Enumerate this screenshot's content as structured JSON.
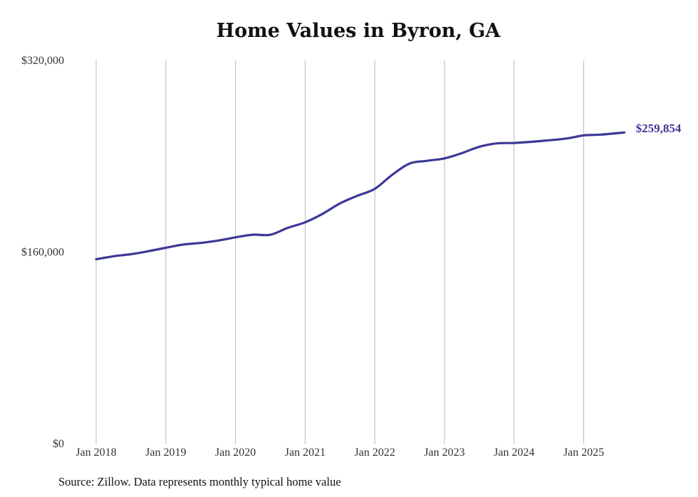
{
  "page": {
    "title": "Home Values in Byron, GA",
    "source": "Source: Zillow. Data represents monthly typical home value"
  },
  "colors": {
    "line": "#3d3897",
    "grid": "#b8b8b8",
    "text": "#333333"
  },
  "chart_data": {
    "type": "line",
    "title": "Home Values in Byron, GA",
    "xlabel": "",
    "ylabel": "",
    "x_ticks": [
      "Jan 2018",
      "Jan 2019",
      "Jan 2020",
      "Jan 2021",
      "Jan 2022",
      "Jan 2023",
      "Jan 2024",
      "Jan 2025"
    ],
    "y_ticks": [
      "$0",
      "$160,000",
      "$320,000"
    ],
    "ylim": [
      0,
      320000
    ],
    "xlim": [
      "2018-01",
      "2025-08"
    ],
    "grid": "vertical lines at x ticks",
    "end_label": "$259,854",
    "series": [
      {
        "x": [
          "2018-01",
          "2018-04",
          "2018-07",
          "2018-10",
          "2019-01",
          "2019-04",
          "2019-07",
          "2019-10",
          "2020-01",
          "2020-04",
          "2020-07",
          "2020-10",
          "2021-01",
          "2021-04",
          "2021-07",
          "2021-10",
          "2022-01",
          "2022-04",
          "2022-07",
          "2022-10",
          "2023-01",
          "2023-04",
          "2023-07",
          "2023-10",
          "2024-01",
          "2024-04",
          "2024-07",
          "2024-10",
          "2025-01",
          "2025-04",
          "2025-08"
        ],
        "y": [
          154000,
          156500,
          158200,
          160700,
          163600,
          166300,
          167600,
          169600,
          172300,
          174500,
          174400,
          180200,
          184800,
          191900,
          200600,
          207000,
          212800,
          224500,
          233900,
          236200,
          238200,
          242600,
          247900,
          250700,
          251100,
          252100,
          253300,
          254800,
          257400,
          258100,
          259854
        ]
      }
    ]
  }
}
